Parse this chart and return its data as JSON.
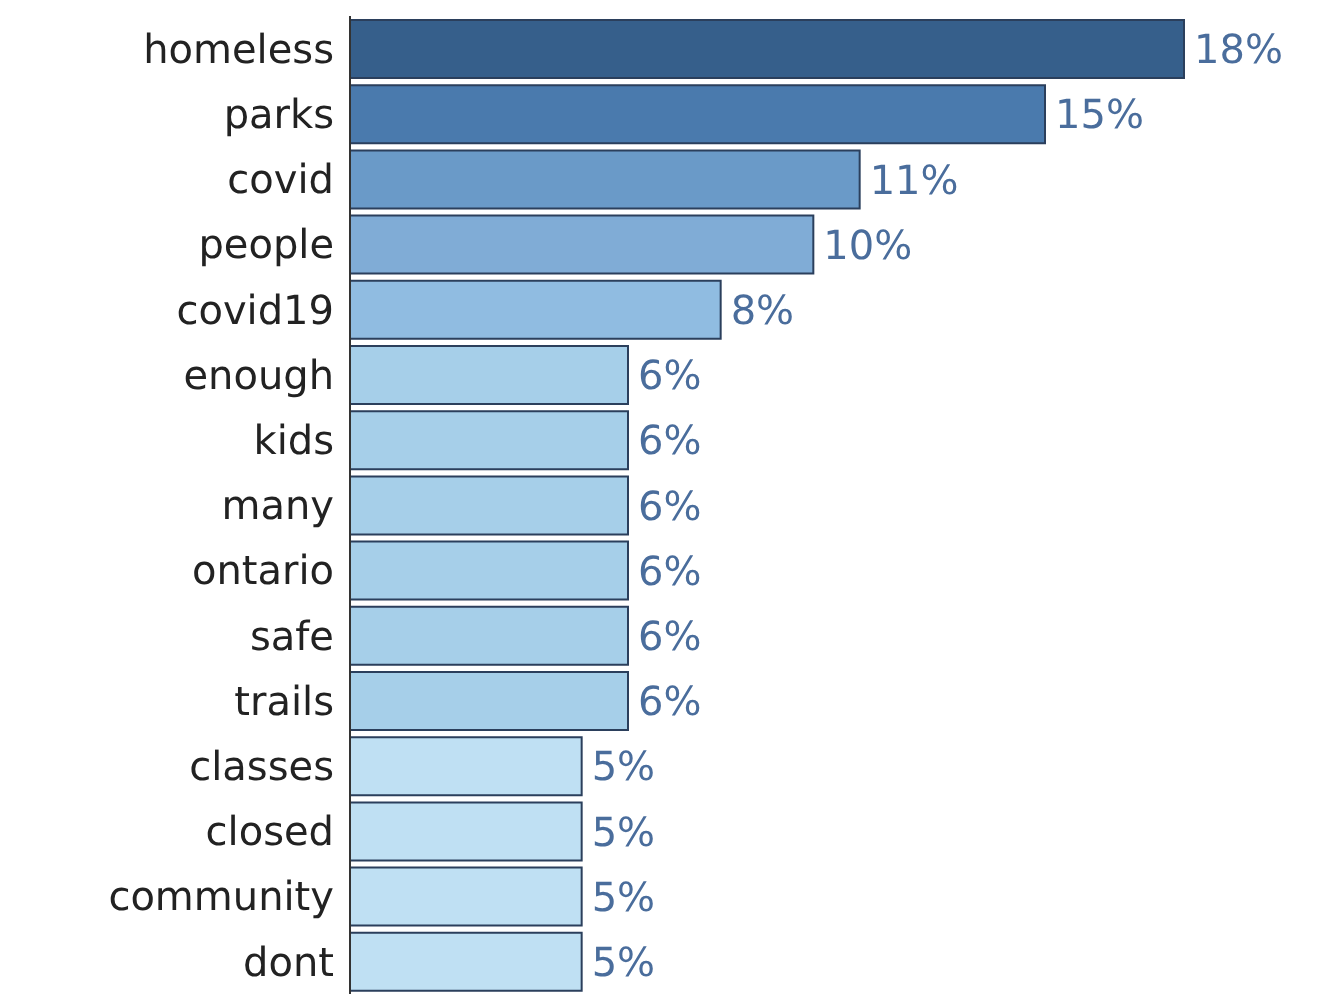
{
  "chart_data": {
    "type": "bar",
    "orientation": "horizontal",
    "tick_labels": "y",
    "categories": [
      "homeless",
      "parks",
      "covid",
      "people",
      "covid19",
      "enough",
      "kids",
      "many",
      "ontario",
      "safe",
      "trails",
      "classes",
      "closed",
      "community",
      "dont"
    ],
    "values": [
      18,
      15,
      11,
      10,
      8,
      6,
      6,
      6,
      6,
      6,
      6,
      5,
      5,
      5,
      5
    ],
    "value_labels": [
      "18%",
      "15%",
      "11%",
      "10%",
      "8%",
      "6%",
      "6%",
      "6%",
      "6%",
      "6%",
      "6%",
      "5%",
      "5%",
      "5%",
      "5%"
    ],
    "colors": [
      "#365f8b",
      "#4a7aad",
      "#6a9ac8",
      "#80acd6",
      "#90bce1",
      "#a6cfe9",
      "#a6cfe9",
      "#a6cfe9",
      "#a6cfe9",
      "#a6cfe9",
      "#a6cfe9",
      "#bfe0f3",
      "#bfe0f3",
      "#bfe0f3",
      "#bfe0f3"
    ]
  }
}
